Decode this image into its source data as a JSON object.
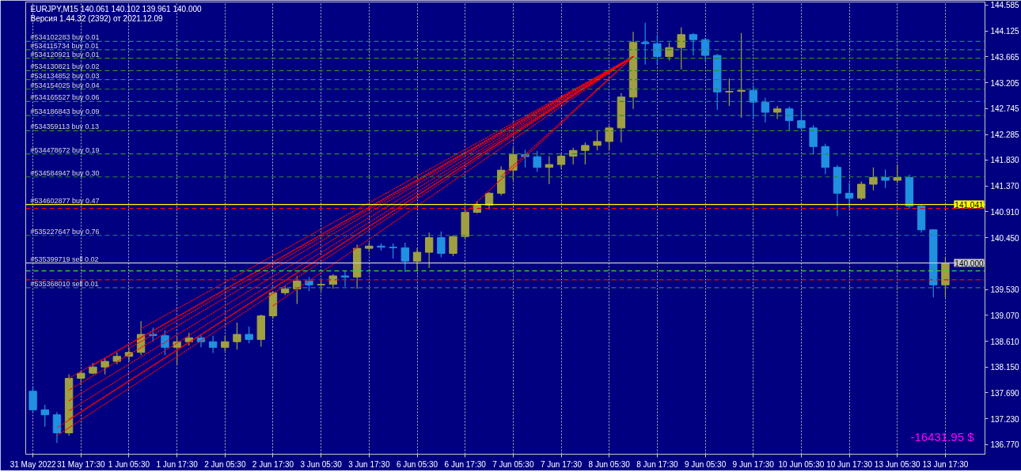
{
  "chart_data": {
    "type": "candlestick",
    "title": "EURJPY,M15 140.061 140.102 139.961 140.000",
    "subtitle": "Версия 1.44.32 (2392) от 2021.12.09",
    "annotations": [
      "-16431.95 $",
      {
        "text": "#534602877 buy 0.47",
        "y": 141.041
      },
      {
        "text": "#535399719 sell 0.02",
        "y": 140.0
      }
    ],
    "categories": [
      "31 May 2022",
      null,
      null,
      null,
      "31 May 17:30",
      null,
      null,
      null,
      "1 Jun 05:30",
      null,
      null,
      null,
      "1 Jun 17:30",
      null,
      null,
      null,
      "2 Jun 05:30",
      null,
      null,
      null,
      "2 Jun 17:30",
      null,
      null,
      null,
      "3 Jun 05:30",
      null,
      null,
      null,
      "3 Jun 17:30",
      null,
      null,
      null,
      "6 Jun 05:30",
      null,
      null,
      null,
      "6 Jun 17:30",
      null,
      null,
      null,
      "7 Jun 05:30",
      null,
      null,
      null,
      "7 Jun 17:30",
      null,
      null,
      null,
      "8 Jun 05:30",
      null,
      null,
      null,
      "8 Jun 17:30",
      null,
      null,
      null,
      "9 Jun 05:30",
      null,
      null,
      null,
      "9 Jun 17:30",
      null,
      null,
      null,
      "10 Jun 05:30",
      null,
      null,
      null,
      "10 Jun 17:30",
      null,
      null,
      null,
      "13 Jun 05:30",
      null,
      null,
      null,
      "13 Jun 17:30"
    ],
    "ohlc": [
      [
        137.72,
        137.79,
        137.35,
        137.39
      ],
      [
        137.39,
        137.48,
        137.09,
        137.3
      ],
      [
        137.3,
        137.35,
        136.8,
        136.98
      ],
      [
        136.98,
        138.02,
        136.93,
        137.95
      ],
      [
        137.95,
        138.08,
        137.83,
        138.04
      ],
      [
        138.04,
        138.22,
        138.02,
        138.15
      ],
      [
        138.15,
        138.32,
        138.02,
        138.25
      ],
      [
        138.25,
        138.41,
        138.2,
        138.34
      ],
      [
        138.34,
        138.5,
        138.25,
        138.41
      ],
      [
        138.41,
        138.97,
        138.36,
        138.73
      ],
      [
        138.73,
        138.85,
        138.6,
        138.71
      ],
      [
        138.71,
        138.8,
        138.36,
        138.5
      ],
      [
        138.5,
        138.69,
        138.19,
        138.6
      ],
      [
        138.6,
        138.76,
        138.53,
        138.67
      ],
      [
        138.67,
        138.73,
        138.5,
        138.6
      ],
      [
        138.6,
        138.71,
        138.4,
        138.5
      ],
      [
        138.5,
        138.71,
        138.43,
        138.6
      ],
      [
        138.6,
        138.94,
        138.46,
        138.73
      ],
      [
        138.73,
        138.87,
        138.57,
        138.64
      ],
      [
        138.64,
        139.08,
        138.51,
        139.06
      ],
      [
        139.06,
        139.5,
        139.01,
        139.47
      ],
      [
        139.47,
        139.59,
        139.43,
        139.54
      ],
      [
        139.54,
        139.77,
        139.27,
        139.68
      ],
      [
        139.68,
        139.75,
        139.5,
        139.61
      ],
      [
        139.61,
        139.73,
        139.5,
        139.62
      ],
      [
        139.62,
        139.8,
        139.54,
        139.77
      ],
      [
        139.77,
        139.86,
        139.58,
        139.75
      ],
      [
        139.75,
        140.33,
        139.54,
        140.26
      ],
      [
        140.26,
        140.36,
        140.2,
        140.3
      ],
      [
        140.3,
        140.35,
        140.22,
        140.28
      ],
      [
        140.28,
        140.35,
        140.08,
        140.27
      ],
      [
        140.27,
        140.36,
        139.84,
        140.03
      ],
      [
        140.03,
        140.26,
        139.87,
        140.19
      ],
      [
        140.19,
        140.54,
        139.91,
        140.45
      ],
      [
        140.45,
        140.56,
        140.1,
        140.17
      ],
      [
        140.17,
        140.49,
        140.12,
        140.47
      ],
      [
        140.47,
        140.96,
        140.42,
        140.9
      ],
      [
        140.9,
        141.1,
        140.88,
        141.03
      ],
      [
        141.03,
        141.26,
        140.95,
        141.24
      ],
      [
        141.24,
        141.72,
        141.2,
        141.65
      ],
      [
        141.65,
        142.05,
        141.47,
        141.93
      ],
      [
        141.93,
        142.01,
        141.7,
        141.89
      ],
      [
        141.89,
        141.99,
        141.62,
        141.7
      ],
      [
        141.7,
        141.9,
        141.4,
        141.75
      ],
      [
        141.75,
        141.95,
        141.67,
        141.9
      ],
      [
        141.9,
        142.05,
        141.75,
        142.0
      ],
      [
        142.0,
        142.14,
        141.75,
        142.09
      ],
      [
        142.09,
        142.35,
        142.0,
        142.16
      ],
      [
        142.16,
        142.44,
        142.0,
        142.4
      ],
      [
        142.4,
        143.02,
        142.14,
        142.95
      ],
      [
        142.95,
        144.11,
        142.74,
        143.92
      ],
      [
        143.92,
        144.27,
        143.53,
        143.9
      ],
      [
        143.9,
        144.06,
        143.53,
        143.67
      ],
      [
        143.67,
        143.92,
        143.6,
        143.83
      ],
      [
        143.83,
        144.19,
        143.44,
        144.06
      ],
      [
        144.06,
        144.09,
        143.69,
        143.97
      ],
      [
        143.97,
        144.0,
        143.6,
        143.69
      ],
      [
        143.69,
        143.72,
        142.72,
        143.04
      ],
      [
        143.04,
        143.28,
        142.79,
        143.05
      ],
      [
        143.05,
        144.09,
        142.58,
        143.07
      ],
      [
        143.07,
        143.16,
        142.56,
        142.86
      ],
      [
        142.86,
        142.94,
        142.5,
        142.68
      ],
      [
        142.68,
        142.79,
        142.56,
        142.74
      ],
      [
        142.74,
        142.78,
        142.35,
        142.53
      ],
      [
        142.53,
        142.72,
        142.36,
        142.4
      ],
      [
        142.4,
        142.45,
        141.93,
        142.07
      ],
      [
        142.07,
        142.12,
        141.58,
        141.7
      ],
      [
        141.7,
        141.74,
        140.83,
        141.24
      ],
      [
        141.24,
        141.42,
        140.94,
        141.15
      ],
      [
        141.15,
        141.45,
        141.12,
        141.4
      ],
      [
        141.4,
        141.7,
        141.29,
        141.52
      ],
      [
        141.52,
        141.66,
        141.33,
        141.47
      ],
      [
        141.47,
        141.75,
        141.42,
        141.52
      ],
      [
        141.52,
        141.57,
        140.96,
        141.01
      ],
      [
        141.01,
        141.05,
        140.54,
        140.59
      ],
      [
        140.59,
        140.6,
        139.39,
        139.61
      ],
      [
        139.61,
        140.1,
        139.39,
        140.0
      ]
    ],
    "colors": [
      "#2090e0",
      "#2090e0",
      "#2090e0",
      "#a0a040",
      "#a0a040",
      "#a0a040",
      "#a0a040",
      "#a0a040",
      "#a0a040",
      "#a0a040",
      "#2090e0",
      "#2090e0",
      "#a0a040",
      "#a0a040",
      "#2090e0",
      "#2090e0",
      "#a0a040",
      "#a0a040",
      "#2090e0",
      "#a0a040",
      "#a0a040",
      "#a0a040",
      "#a0a040",
      "#2090e0",
      "#a0a040",
      "#a0a040",
      "#2090e0",
      "#a0a040",
      "#a0a040",
      "#2090e0",
      "#2090e0",
      "#2090e0",
      "#a0a040",
      "#a0a040",
      "#2090e0",
      "#a0a040",
      "#a0a040",
      "#a0a040",
      "#a0a040",
      "#a0a040",
      "#a0a040",
      "#2090e0",
      "#2090e0",
      "#a0a040",
      "#a0a040",
      "#a0a040",
      "#a0a040",
      "#a0a040",
      "#a0a040",
      "#a0a040",
      "#a0a040",
      "#2090e0",
      "#2090e0",
      "#a0a040",
      "#a0a040",
      "#2090e0",
      "#2090e0",
      "#2090e0",
      "#a0a040",
      "#a0a040",
      "#2090e0",
      "#2090e0",
      "#a0a040",
      "#2090e0",
      "#2090e0",
      "#2090e0",
      "#2090e0",
      "#2090e0",
      "#2090e0",
      "#a0a040",
      "#a0a040",
      "#2090e0",
      "#a0a040",
      "#2090e0",
      "#2090e0",
      "#2090e0",
      "#a0a040"
    ],
    "series": [
      {
        "type": "line",
        "color": "#ff0000",
        "line_style": "dotted",
        "values": [
          null,
          null,
          136.93,
          null,
          null,
          null,
          null,
          null,
          null,
          null,
          null,
          null,
          null,
          null,
          null,
          null,
          null,
          null,
          null,
          null,
          null,
          null,
          null,
          null,
          null,
          null,
          null,
          null,
          null,
          null,
          null,
          null,
          null,
          null,
          null,
          null,
          null,
          null,
          null,
          null,
          null,
          null,
          null,
          null,
          null,
          null,
          null,
          null,
          null,
          null,
          143.67,
          null,
          null,
          null,
          null,
          null,
          null,
          null,
          null,
          null,
          null,
          null,
          null,
          null,
          null,
          null,
          null,
          null,
          null,
          null,
          null,
          null,
          null,
          null,
          null,
          null,
          null
        ]
      },
      {
        "type": "line",
        "color": "#ff0000",
        "line_style": "dotted",
        "values": [
          null,
          null,
          137.07,
          null,
          null,
          null,
          null,
          null,
          null,
          null,
          null,
          null,
          null,
          null,
          null,
          null,
          null,
          null,
          null,
          null,
          null,
          null,
          null,
          null,
          null,
          null,
          null,
          null,
          null,
          null,
          null,
          null,
          null,
          null,
          null,
          null,
          null,
          null,
          null,
          null,
          null,
          null,
          null,
          null,
          null,
          null,
          null,
          null,
          null,
          null,
          143.67,
          null,
          null,
          null,
          null,
          null,
          null,
          null,
          null,
          null,
          null,
          null,
          null,
          null,
          null,
          null,
          null,
          null,
          null,
          null,
          null,
          null,
          null,
          null,
          null,
          null,
          null
        ]
      },
      {
        "type": "line",
        "color": "#ff0000",
        "line_style": "dotted",
        "values": [
          null,
          null,
          null,
          137.22,
          null,
          null,
          null,
          null,
          null,
          null,
          null,
          null,
          null,
          null,
          null,
          null,
          null,
          null,
          null,
          null,
          null,
          null,
          null,
          null,
          null,
          null,
          null,
          null,
          null,
          null,
          null,
          null,
          null,
          null,
          null,
          null,
          null,
          null,
          null,
          null,
          null,
          null,
          null,
          null,
          null,
          null,
          null,
          null,
          null,
          null,
          143.67,
          null,
          null,
          null,
          null,
          null,
          null,
          null,
          null,
          null,
          null,
          null,
          null,
          null,
          null,
          null,
          null,
          null,
          null,
          null,
          null,
          null,
          null,
          null,
          null,
          null,
          null
        ]
      },
      {
        "type": "line",
        "color": "#ff0000",
        "line_style": "dotted",
        "values": [
          null,
          null,
          null,
          137.37,
          null,
          null,
          null,
          null,
          null,
          null,
          null,
          null,
          null,
          null,
          null,
          null,
          null,
          null,
          null,
          null,
          null,
          null,
          null,
          null,
          null,
          null,
          null,
          null,
          null,
          null,
          null,
          null,
          null,
          null,
          null,
          null,
          null,
          null,
          null,
          null,
          null,
          null,
          null,
          null,
          null,
          null,
          null,
          null,
          null,
          null,
          143.67,
          null,
          null,
          null,
          null,
          null,
          null,
          null,
          null,
          null,
          null,
          null,
          null,
          null,
          null,
          null,
          null,
          null,
          null,
          null,
          null,
          null,
          null,
          null,
          null,
          null,
          null
        ]
      },
      {
        "type": "line",
        "color": "#ff0000",
        "line_style": "dotted",
        "values": [
          null,
          null,
          null,
          137.55,
          null,
          null,
          null,
          null,
          null,
          null,
          null,
          null,
          null,
          null,
          null,
          null,
          null,
          null,
          null,
          null,
          null,
          null,
          null,
          null,
          null,
          null,
          null,
          null,
          null,
          null,
          null,
          null,
          null,
          null,
          null,
          null,
          null,
          null,
          null,
          null,
          null,
          null,
          null,
          null,
          null,
          null,
          null,
          null,
          null,
          null,
          143.67,
          null,
          null,
          null,
          null,
          null,
          null,
          null,
          null,
          null,
          null,
          null,
          null,
          null,
          null,
          null,
          null,
          null,
          null,
          null,
          null,
          null,
          null,
          null,
          null,
          null,
          null
        ]
      },
      {
        "type": "line",
        "color": "#ff0000",
        "line_style": "dotted",
        "values": [
          null,
          null,
          null,
          137.74,
          null,
          null,
          null,
          null,
          null,
          null,
          null,
          null,
          null,
          null,
          null,
          null,
          null,
          null,
          null,
          null,
          null,
          null,
          null,
          null,
          null,
          null,
          null,
          null,
          null,
          null,
          null,
          null,
          null,
          null,
          null,
          null,
          null,
          null,
          null,
          null,
          null,
          null,
          null,
          null,
          null,
          null,
          null,
          null,
          null,
          null,
          143.67,
          null,
          null,
          null,
          null,
          null,
          null,
          null,
          null,
          null,
          null,
          null,
          null,
          null,
          null,
          null,
          null,
          null,
          null,
          null,
          null,
          null,
          null,
          null,
          null,
          null,
          null
        ]
      },
      {
        "type": "line",
        "color": "#ff0000",
        "line_style": "dotted",
        "values": [
          null,
          null,
          null,
          137.95,
          null,
          null,
          null,
          null,
          null,
          null,
          null,
          null,
          null,
          null,
          null,
          null,
          null,
          null,
          null,
          null,
          null,
          null,
          null,
          null,
          null,
          null,
          null,
          null,
          null,
          null,
          null,
          null,
          null,
          null,
          null,
          null,
          null,
          null,
          null,
          null,
          null,
          null,
          null,
          null,
          null,
          null,
          null,
          null,
          null,
          null,
          143.67,
          null,
          null,
          null,
          null,
          null,
          null,
          null,
          null,
          null,
          null,
          null,
          null,
          null,
          null,
          null,
          null,
          null,
          null,
          null,
          null,
          null,
          null,
          null,
          null,
          null,
          null
        ]
      },
      {
        "type": "line",
        "color": "#ff0000",
        "line_style": "dotted",
        "values": [
          null,
          null,
          null,
          null,
          null,
          138.18,
          null,
          null,
          null,
          null,
          null,
          null,
          null,
          null,
          null,
          null,
          null,
          null,
          null,
          null,
          null,
          null,
          null,
          null,
          null,
          null,
          null,
          null,
          null,
          null,
          null,
          null,
          null,
          null,
          null,
          null,
          null,
          null,
          null,
          null,
          null,
          null,
          null,
          null,
          null,
          null,
          null,
          null,
          null,
          null,
          143.67,
          null,
          null,
          null,
          null,
          null,
          null,
          null,
          null,
          null,
          null,
          null,
          null,
          null,
          null,
          null,
          null,
          null,
          null,
          null,
          null,
          null,
          null,
          null,
          null,
          null,
          null
        ]
      },
      {
        "type": "line",
        "color": "#ff0000",
        "line_style": "dotted",
        "values": [
          null,
          null,
          null,
          null,
          null,
          null,
          null,
          null,
          138.48,
          null,
          null,
          null,
          null,
          null,
          null,
          null,
          null,
          null,
          null,
          null,
          null,
          null,
          null,
          null,
          null,
          null,
          null,
          null,
          null,
          null,
          null,
          null,
          null,
          null,
          null,
          null,
          null,
          null,
          null,
          null,
          null,
          null,
          null,
          null,
          null,
          null,
          null,
          null,
          null,
          null,
          143.67,
          null,
          null,
          null,
          null,
          null,
          null,
          null,
          null,
          null,
          null,
          null,
          null,
          null,
          null,
          null,
          null,
          null,
          null,
          null,
          null,
          null,
          null,
          null,
          null,
          null,
          null
        ]
      },
      {
        "type": "line",
        "color": "#ff0000",
        "line_style": "dotted",
        "values": [
          null,
          null,
          null,
          null,
          null,
          null,
          null,
          null,
          null,
          138.83,
          null,
          null,
          null,
          null,
          null,
          null,
          null,
          null,
          null,
          null,
          null,
          null,
          null,
          null,
          null,
          null,
          null,
          null,
          null,
          null,
          null,
          null,
          null,
          null,
          null,
          null,
          null,
          null,
          null,
          null,
          null,
          null,
          null,
          null,
          null,
          null,
          null,
          null,
          null,
          null,
          143.67,
          null,
          null,
          null,
          null,
          null,
          null,
          null,
          null,
          null,
          null,
          null,
          null,
          null,
          null,
          null,
          null,
          null,
          null,
          null,
          null,
          null,
          null,
          null,
          null,
          null,
          null
        ]
      },
      {
        "type": "line",
        "color": "#ff0000",
        "line_style": "dotted",
        "values": [
          null,
          null,
          null,
          null,
          null,
          null,
          null,
          null,
          null,
          null,
          null,
          null,
          null,
          null,
          null,
          null,
          null,
          null,
          null,
          null,
          139.24,
          null,
          null,
          null,
          null,
          null,
          null,
          null,
          null,
          null,
          null,
          null,
          null,
          null,
          null,
          null,
          null,
          null,
          null,
          null,
          null,
          null,
          null,
          null,
          null,
          null,
          null,
          null,
          null,
          null,
          143.67,
          null,
          null,
          null,
          null,
          null,
          null,
          null,
          null,
          null,
          null,
          null,
          null,
          null,
          null,
          null,
          null,
          null,
          null,
          null,
          null,
          null,
          null,
          null,
          null,
          null,
          null
        ]
      },
      {
        "type": "line",
        "color": "#ff0000",
        "line_style": "dotted",
        "values": [
          null,
          null,
          null,
          null,
          null,
          null,
          null,
          null,
          null,
          null,
          null,
          null,
          null,
          null,
          null,
          null,
          null,
          null,
          null,
          null,
          null,
          null,
          null,
          null,
          null,
          null,
          null,
          null,
          null,
          null,
          null,
          null,
          null,
          null,
          null,
          null,
          140.89,
          null,
          null,
          null,
          null,
          null,
          null,
          null,
          null,
          null,
          null,
          null,
          null,
          null,
          143.67,
          null,
          null,
          null,
          null,
          null,
          null,
          null,
          null,
          null,
          null,
          null,
          null,
          null,
          null,
          null,
          null,
          null,
          null,
          null,
          null,
          null,
          null,
          null,
          null,
          null,
          null
        ]
      },
      {
        "type": "line",
        "color": "#ff0000",
        "line_style": "dotted",
        "values": [
          null,
          null,
          null,
          null,
          null,
          null,
          null,
          null,
          null,
          null,
          null,
          null,
          null,
          null,
          null,
          null,
          null,
          null,
          null,
          null,
          null,
          null,
          null,
          null,
          null,
          null,
          null,
          null,
          null,
          null,
          null,
          null,
          null,
          null,
          null,
          null,
          null,
          null,
          null,
          141.54,
          null,
          null,
          null,
          null,
          null,
          null,
          null,
          null,
          null,
          null,
          143.67,
          null,
          null,
          null,
          null,
          null,
          null,
          null,
          null,
          null,
          null,
          null,
          null,
          null,
          null,
          null,
          null,
          null,
          null,
          null,
          null,
          null,
          null,
          null,
          null,
          null,
          null
        ]
      }
    ],
    "ylim": [
      136.6,
      144.64
    ],
    "yticks": [
      144.585,
      144.125,
      143.665,
      143.205,
      142.745,
      142.285,
      {
        "value": 141.83,
        "label": "141.830"
      },
      {
        "value": 141.37,
        "label": "141.370"
      },
      {
        "value": 140.91,
        "label": "140.910"
      },
      {
        "value": 140.45,
        "label": "140.450"
      },
      {
        "value": 139.53,
        "label": "139.530"
      },
      {
        "value": 139.07,
        "label": "139.070"
      },
      {
        "value": 138.61,
        "label": "138.610"
      },
      {
        "value": 138.15,
        "label": "138.150"
      },
      {
        "value": 137.69,
        "label": "137.690"
      },
      {
        "value": 137.23,
        "label": "137.230"
      },
      {
        "value": 136.77,
        "label": "136.770"
      }
    ],
    "ref_lines": [
      {
        "axis": "y",
        "value": 143.94,
        "label": "#534102283 buy 0.01",
        "color": "#2e8b2e",
        "line_style": "dashed"
      },
      {
        "axis": "y",
        "value": 143.79,
        "label": "#534115734 buy 0.01",
        "color": "#2e8b2e",
        "line_style": "dashed"
      },
      {
        "axis": "y",
        "value": 143.64,
        "label": "#534120921 buy 0.01",
        "color": "#2e8b2e",
        "line_style": "dashed"
      },
      {
        "axis": "y",
        "value": 143.42,
        "label": "#534130821 buy 0.02",
        "color": "#2e8b2e",
        "line_style": "dashed"
      },
      {
        "axis": "y",
        "value": 143.26,
        "label": "#534134852 buy 0.03",
        "color": "#2e8b2e",
        "line_style": "dashed"
      },
      {
        "axis": "y",
        "value": 143.09,
        "label": "#534154025 buy 0.04",
        "color": "#2e8b2e",
        "line_style": "dashed"
      },
      {
        "axis": "y",
        "value": 142.87,
        "label": "#534165527 buy 0.06",
        "color": "#2e8b2e",
        "line_style": "dashed"
      },
      {
        "axis": "y",
        "value": 142.62,
        "label": "#534186843 buy 0.09",
        "color": "#2e8b2e",
        "line_style": "dashed"
      },
      {
        "axis": "y",
        "value": 142.35,
        "label": "#534359113 buy 0.13",
        "color": "#2e8b2e",
        "line_style": "dashed"
      },
      {
        "axis": "y",
        "value": 141.94,
        "label": "#534478672 buy 0.19",
        "color": "#2e8b2e",
        "line_style": "dashed"
      },
      {
        "axis": "y",
        "value": 141.53,
        "label": "#534584947 buy 0.30",
        "color": "#2e8b2e",
        "line_style": "dashed"
      },
      {
        "axis": "y",
        "value": 141.041,
        "label": "141.041",
        "color": "#ffff00",
        "line_style": "solid"
      },
      {
        "axis": "y",
        "value": 140.97,
        "color": "#ff0000",
        "line_style": "dashed"
      },
      {
        "axis": "y",
        "value": 140.49,
        "label": "#535227647 buy 0.76",
        "color": "#2e8b2e",
        "line_style": "dashed"
      },
      {
        "axis": "y",
        "value": 140.0,
        "label": "140.000",
        "color": "#c8c8c8",
        "line_style": "solid"
      },
      {
        "axis": "y",
        "value": 139.86,
        "color": "#33dd33",
        "line_style": "dashed"
      },
      {
        "axis": "y",
        "value": 139.7,
        "color": "#ff0000",
        "line_style": "dashed"
      },
      {
        "axis": "y",
        "value": 139.56,
        "label": "#535368010 sell 0.01",
        "color": "#2e8b2e",
        "line_style": "dashed"
      }
    ],
    "grid": "x"
  }
}
